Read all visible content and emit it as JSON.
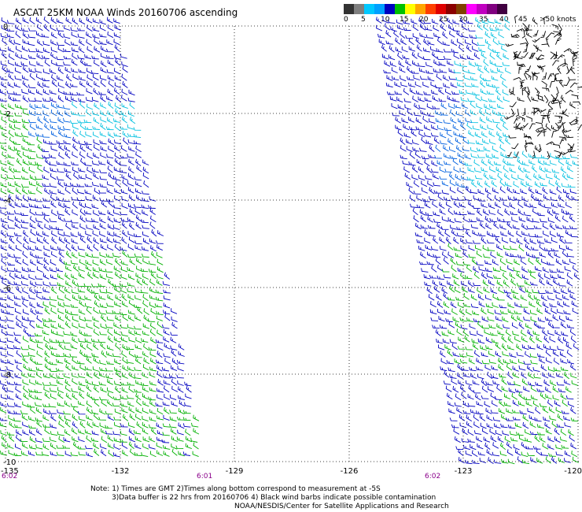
{
  "title": "ASCAT 25KM NOAA Winds 20160706 ascending",
  "legend": {
    "labels": [
      "0",
      "5",
      "10",
      "15",
      "20",
      "25",
      "30",
      "35",
      "40",
      "45",
      ">50 knots"
    ],
    "colors": [
      "#333333",
      "#7f7f7f",
      "#00c8ff",
      "#00a0ff",
      "#0000c0",
      "#00c000",
      "#ffff00",
      "#ffa500",
      "#ff4000",
      "#e00000",
      "#8b0000",
      "#804000",
      "#ff00ff",
      "#c000c0",
      "#800080",
      "#400040"
    ]
  },
  "axes": {
    "x_ticks": [
      "-135",
      "-132",
      "-129",
      "-126",
      "-123",
      "-120"
    ],
    "y_ticks": [
      "0",
      "-2",
      "-4",
      "-6",
      "-8",
      "-10"
    ]
  },
  "times": {
    "left_start": "6:02",
    "left_end": "6:01",
    "right_start": "6:02"
  },
  "barb_colors": {
    "green": "#00b000",
    "blue": "#0000c0",
    "midblue": "#0060e0",
    "cyan": "#00c0e0",
    "black": "#000000"
  },
  "notes": [
    "Note: 1) Times are GMT 2)Times along bottom correspond to measurement at -5S",
    "3)Data buffer is 22 hrs from 20160706 4) Black wind barbs indicate possible contamination",
    "NOAA/NESDIS/Center for Satellite Applications and Research"
  ]
}
